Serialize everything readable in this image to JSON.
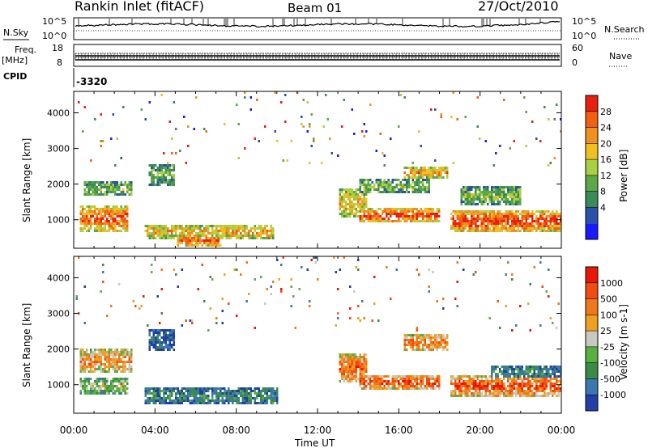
{
  "header": {
    "title": "Rankin Inlet (fitACF)",
    "beam": "Beam 01",
    "date": "27/Oct/2010"
  },
  "strips": {
    "nsky_label": "N.Sky",
    "nsky_ticks": [
      "10^5",
      "10^0"
    ],
    "nsearch_label": "N.Search",
    "nsearch_ticks": [
      "10^5",
      "10^0"
    ],
    "freq_label": "Freq.",
    "freq_unit": "[MHz]",
    "freq_ticks": [
      "18",
      "8"
    ],
    "nave_label": "Nave",
    "nave_ticks": [
      "60",
      "0"
    ],
    "cpid_label": "CPID",
    "cpid_value": "-3320"
  },
  "colors": {
    "power": [
      "#1a1aff",
      "#2a50a8",
      "#3c8a5a",
      "#5aa848",
      "#a8d040",
      "#f0c020",
      "#f09020",
      "#f06010",
      "#e82010"
    ],
    "velocity": [
      "#2040a8",
      "#3c78b0",
      "#3c8a48",
      "#58b040",
      "#c8c8c0",
      "#f0a020",
      "#f07818",
      "#f04c10",
      "#e81808"
    ]
  },
  "chart_data": [
    {
      "type": "heatmap",
      "name": "power",
      "ylabel": "Slant Range [km]",
      "xlabel": "Time UT",
      "x_ticks": [
        "00:00",
        "04:00",
        "08:00",
        "12:00",
        "16:00",
        "20:00",
        "00:00"
      ],
      "y_ticks": [
        1000,
        2000,
        3000,
        4000
      ],
      "ylim": [
        200,
        4600
      ],
      "xlim_hours": [
        0,
        24
      ],
      "colorbar_label": "Power [dB]",
      "colorbar_ticks": [
        "28",
        "24",
        "20",
        "16",
        "12",
        "8",
        "4"
      ],
      "bands": [
        {
          "t0": 0.2,
          "t1": 2.6,
          "r_center": 1050,
          "r_width": 650,
          "level": 0.88
        },
        {
          "t0": 0.4,
          "t1": 2.8,
          "r_center": 1900,
          "r_width": 350,
          "level": 0.45
        },
        {
          "t0": 3.4,
          "t1": 9.8,
          "r_center": 700,
          "r_width": 350,
          "level": 0.7
        },
        {
          "t0": 3.6,
          "t1": 4.9,
          "r_center": 2300,
          "r_width": 550,
          "level": 0.4
        },
        {
          "t0": 5.0,
          "t1": 7.2,
          "r_center": 450,
          "r_width": 250,
          "level": 0.85
        },
        {
          "t0": 13.0,
          "t1": 14.4,
          "r_center": 1500,
          "r_width": 700,
          "level": 0.65
        },
        {
          "t0": 14.0,
          "t1": 18.0,
          "r_center": 1150,
          "r_width": 350,
          "level": 0.92
        },
        {
          "t0": 14.0,
          "t1": 17.5,
          "r_center": 1950,
          "r_width": 350,
          "level": 0.45
        },
        {
          "t0": 16.2,
          "t1": 18.4,
          "r_center": 2350,
          "r_width": 250,
          "level": 0.75
        },
        {
          "t0": 18.5,
          "t1": 24.0,
          "r_center": 1000,
          "r_width": 500,
          "level": 0.95
        },
        {
          "t0": 19.0,
          "t1": 22.0,
          "r_center": 1700,
          "r_width": 450,
          "level": 0.45
        }
      ]
    },
    {
      "type": "heatmap",
      "name": "velocity",
      "ylabel": "Slant Range [km]",
      "xlabel": "Time UT",
      "x_ticks": [
        "00:00",
        "04:00",
        "08:00",
        "12:00",
        "16:00",
        "20:00",
        "00:00"
      ],
      "y_ticks": [
        1000,
        2000,
        3000,
        4000
      ],
      "ylim": [
        200,
        4600
      ],
      "xlim_hours": [
        0,
        24
      ],
      "colorbar_label": "Velocity [m s-1]",
      "colorbar_ticks": [
        "1000",
        "500",
        "100",
        "25",
        "-25",
        "-100",
        "-500",
        "-1000"
      ],
      "bands": [
        {
          "t0": 0.2,
          "t1": 2.8,
          "r_center": 1700,
          "r_width": 600,
          "level": 0.7
        },
        {
          "t0": 0.2,
          "t1": 2.6,
          "r_center": 1000,
          "r_width": 450,
          "level": 0.45
        },
        {
          "t0": 3.4,
          "t1": 10.0,
          "r_center": 700,
          "r_width": 400,
          "level": 0.25
        },
        {
          "t0": 3.6,
          "t1": 4.9,
          "r_center": 2300,
          "r_width": 550,
          "level": 0.1
        },
        {
          "t0": 13.0,
          "t1": 14.4,
          "r_center": 1500,
          "r_width": 700,
          "level": 0.8
        },
        {
          "t0": 14.0,
          "t1": 18.0,
          "r_center": 1100,
          "r_width": 350,
          "level": 0.9
        },
        {
          "t0": 16.2,
          "t1": 18.4,
          "r_center": 2200,
          "r_width": 400,
          "level": 0.78
        },
        {
          "t0": 18.5,
          "t1": 24.0,
          "r_center": 1000,
          "r_width": 500,
          "level": 0.88
        },
        {
          "t0": 20.5,
          "t1": 24.0,
          "r_center": 1400,
          "r_width": 300,
          "level": 0.25
        }
      ]
    }
  ]
}
